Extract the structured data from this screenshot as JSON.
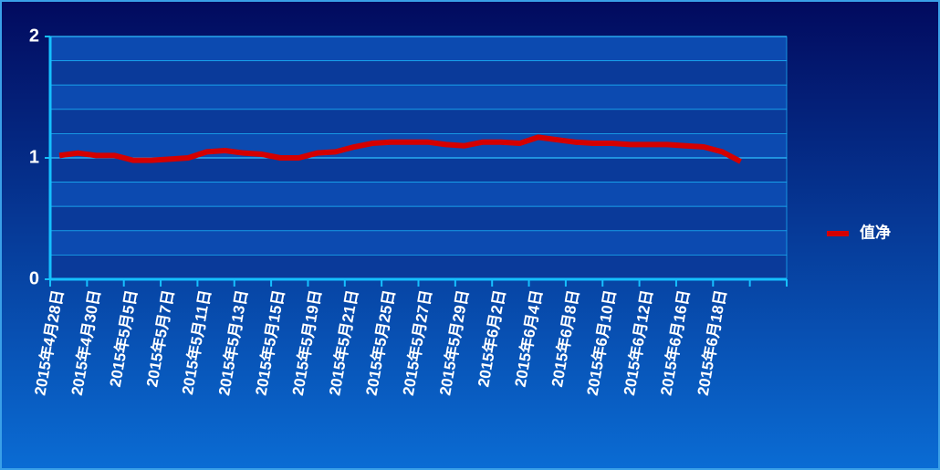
{
  "chart_data": {
    "type": "line",
    "categories": [
      "2015年4月28日",
      null,
      "2015年4月30日",
      null,
      "2015年5月5日",
      null,
      "2015年5月7日",
      null,
      "2015年5月11日",
      null,
      "2015年5月13日",
      null,
      "2015年5月15日",
      null,
      "2015年5月19日",
      null,
      "2015年5月21日",
      null,
      "2015年5月25日",
      null,
      "2015年5月27日",
      null,
      "2015年5月29日",
      null,
      "2015年6月2日",
      null,
      "2015年6月4日",
      null,
      "2015年6月8日",
      null,
      "2015年6月10日",
      null,
      "2015年6月12日",
      null,
      "2015年6月16日",
      null,
      "2015年6月18日",
      null,
      null,
      null
    ],
    "series": [
      {
        "name": "值净",
        "color": "#d40000",
        "values": [
          1.02,
          1.04,
          1.02,
          1.02,
          0.98,
          0.98,
          0.99,
          1.0,
          1.05,
          1.06,
          1.04,
          1.03,
          1.0,
          1.0,
          1.04,
          1.05,
          1.09,
          1.12,
          1.13,
          1.13,
          1.13,
          1.11,
          1.1,
          1.13,
          1.13,
          1.12,
          1.17,
          1.15,
          1.13,
          1.12,
          1.12,
          1.11,
          1.11,
          1.11,
          1.1,
          1.09,
          1.05,
          0.97,
          null,
          null
        ]
      }
    ],
    "ylim": [
      0,
      2
    ],
    "yticks": [
      0,
      1,
      2
    ],
    "grid": true,
    "legend": "right"
  }
}
